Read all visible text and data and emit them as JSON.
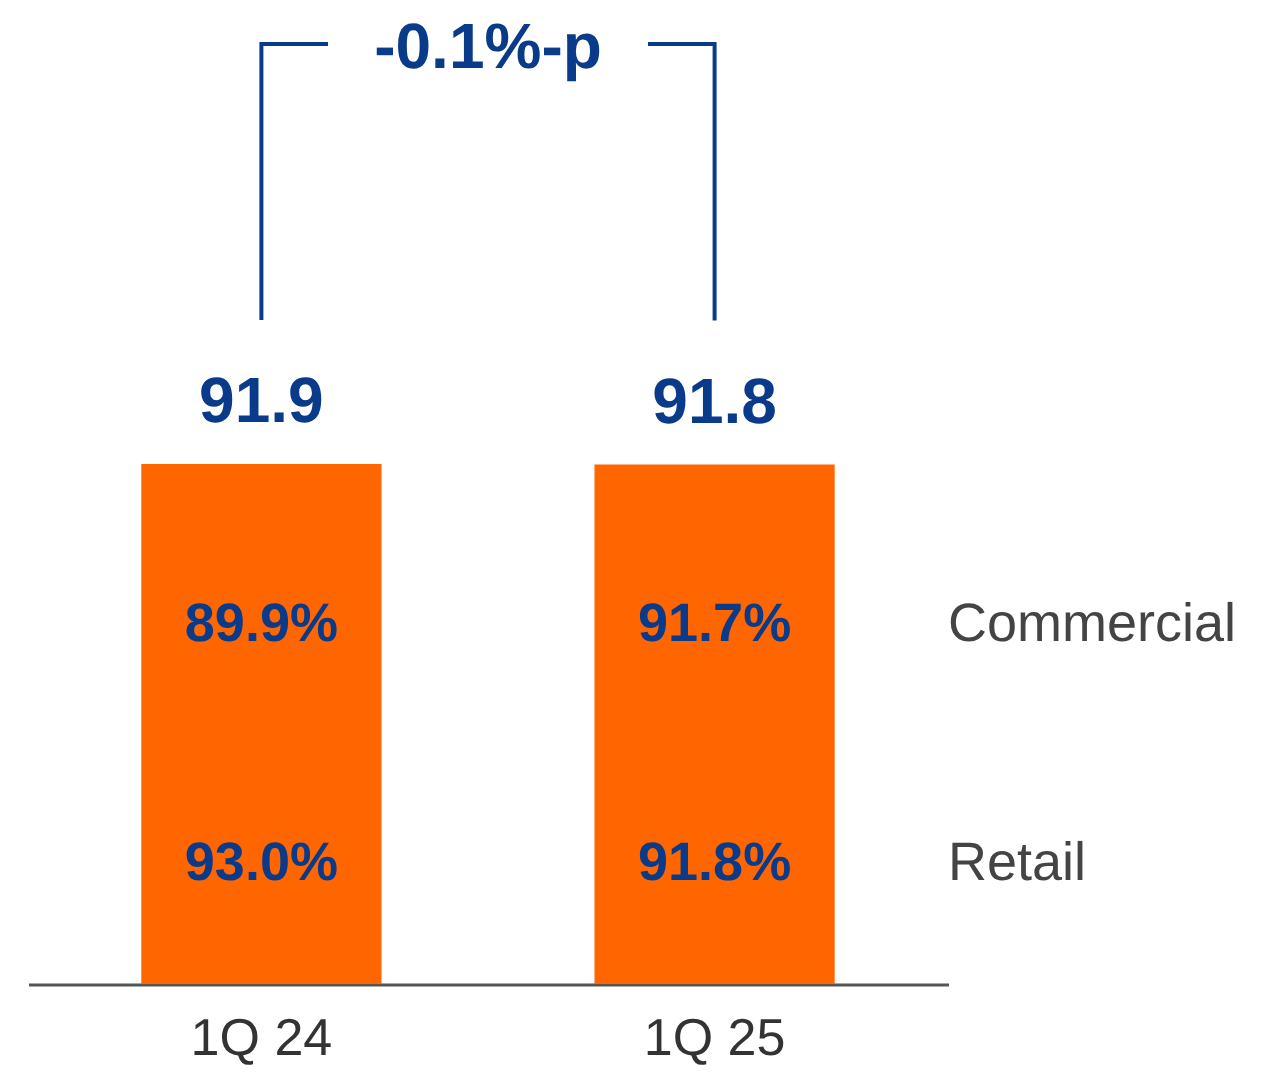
{
  "chart_data": {
    "type": "bar",
    "categories": [
      "1Q 24",
      "1Q 25"
    ],
    "values": [
      91.9,
      91.8
    ],
    "color": "#ff6600",
    "data_labels": true,
    "annotations": [
      "-0.1%-p",
      "89.9%",
      "91.7%",
      "Commercial",
      "93.0%",
      "91.8%",
      "Retail"
    ]
  }
}
